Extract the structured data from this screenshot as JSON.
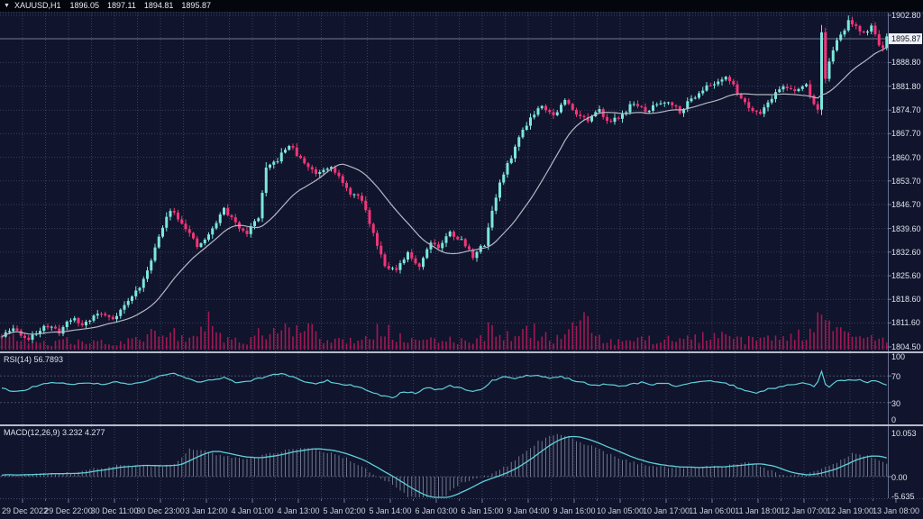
{
  "title_bar": {
    "symbol_timeframe": "XAUUSD,H1",
    "open": "1896.05",
    "high": "1897.11",
    "low": "1894.81",
    "close": "1895.87",
    "dropdown_icon": "symbol-dropdown"
  },
  "main_chart": {
    "current_price": "1895.87"
  },
  "rsi_panel": {
    "label": "RSI(14) 56.7893"
  },
  "macd_panel": {
    "label": "MACD(12,26,9) 3.232 4.277"
  },
  "colors": {
    "background": "#10142c",
    "title_bg": "#04060e",
    "grid": "#7d87aa",
    "bull": "#7ce6de",
    "bear": "#f23577",
    "ma_line": "#b5b8c4",
    "volume": "#a01955",
    "indicator_line": "#5fd0da",
    "histogram": "#99a1b5",
    "separator": "#b7bacb",
    "axis_text": "#dfe3ee",
    "price_tag_bg": "#eef0f6",
    "current_price_line": "#aab0c4"
  },
  "chart_data": {
    "type": "candlestick",
    "symbol": "XAUUSD",
    "timeframe": "H1",
    "ohlc_current": {
      "open": 1896.05,
      "high": 1897.11,
      "low": 1894.81,
      "close": 1895.87
    },
    "n_candles": 232,
    "candles_per_label": 12,
    "current_price": 1895.87,
    "price_axis_labels": [
      "1902.80",
      "1888.80",
      "1881.80",
      "1874.70",
      "1867.70",
      "1860.70",
      "1853.70",
      "1846.70",
      "1839.60",
      "1832.60",
      "1825.60",
      "1818.60",
      "1811.60",
      "1804.50"
    ],
    "x_labels": [
      "29 Dec 2022",
      "29 Dec 22:00",
      "30 Dec 11:00",
      "30 Dec 23:00",
      "3 Jan 12:00",
      "4 Jan 01:00",
      "4 Jan 13:00",
      "5 Jan 02:00",
      "5 Jan 14:00",
      "6 Jan 03:00",
      "6 Jan 15:00",
      "9 Jan 04:00",
      "9 Jan 16:00",
      "10 Jan 05:00",
      "10 Jan 17:00",
      "11 Jan 06:00",
      "11 Jan 18:00",
      "12 Jan 07:00",
      "12 Jan 19:00",
      "13 Jan 08:00"
    ],
    "ma_period": 21,
    "close_anchors": [
      [
        0,
        1807.5
      ],
      [
        3,
        1810
      ],
      [
        7,
        1806.5
      ],
      [
        11,
        1811
      ],
      [
        15,
        1809
      ],
      [
        18,
        1813
      ],
      [
        21,
        1811
      ],
      [
        25,
        1814.5
      ],
      [
        29,
        1813
      ],
      [
        33,
        1818
      ],
      [
        37,
        1824
      ],
      [
        40,
        1834
      ],
      [
        44,
        1845.5
      ],
      [
        46,
        1843
      ],
      [
        48,
        1840
      ],
      [
        51,
        1834
      ],
      [
        54,
        1837.5
      ],
      [
        58,
        1845.5
      ],
      [
        61,
        1841
      ],
      [
        64,
        1838.5
      ],
      [
        67,
        1843
      ],
      [
        69,
        1857
      ],
      [
        72,
        1860
      ],
      [
        75,
        1864.5
      ],
      [
        78,
        1860
      ],
      [
        82,
        1856
      ],
      [
        86,
        1858.5
      ],
      [
        90,
        1851
      ],
      [
        94,
        1848
      ],
      [
        97,
        1838
      ],
      [
        100,
        1829
      ],
      [
        103,
        1827
      ],
      [
        106,
        1832
      ],
      [
        109,
        1828.5
      ],
      [
        112,
        1836
      ],
      [
        114,
        1834
      ],
      [
        117,
        1838.5
      ],
      [
        120,
        1836
      ],
      [
        123,
        1831.5
      ],
      [
        126,
        1835
      ],
      [
        128,
        1845
      ],
      [
        130,
        1853
      ],
      [
        133,
        1861
      ],
      [
        136,
        1869
      ],
      [
        138,
        1872.5
      ],
      [
        141,
        1876.5
      ],
      [
        144,
        1873
      ],
      [
        147,
        1877.5
      ],
      [
        150,
        1874
      ],
      [
        153,
        1871.5
      ],
      [
        156,
        1874.5
      ],
      [
        159,
        1871
      ],
      [
        162,
        1873.5
      ],
      [
        165,
        1877
      ],
      [
        168,
        1874
      ],
      [
        171,
        1876.5
      ],
      [
        174,
        1877.5
      ],
      [
        177,
        1874.5
      ],
      [
        180,
        1878
      ],
      [
        183,
        1881
      ],
      [
        186,
        1882.5
      ],
      [
        189,
        1885
      ],
      [
        192,
        1880
      ],
      [
        195,
        1875.5
      ],
      [
        198,
        1874
      ],
      [
        201,
        1878.5
      ],
      [
        204,
        1882
      ],
      [
        207,
        1880
      ],
      [
        210,
        1882.5
      ],
      [
        212,
        1876
      ],
      [
        213,
        1875.5
      ],
      [
        214,
        1897.5
      ],
      [
        215,
        1884
      ],
      [
        217,
        1893
      ],
      [
        219,
        1896.5
      ],
      [
        221,
        1901
      ],
      [
        223,
        1899
      ],
      [
        225,
        1897.5
      ],
      [
        227,
        1899.5
      ],
      [
        229,
        1894.5
      ],
      [
        230,
        1893
      ],
      [
        231,
        1895.87
      ]
    ],
    "volume_anchors": [
      [
        0,
        12
      ],
      [
        4,
        16
      ],
      [
        8,
        9
      ],
      [
        12,
        8
      ],
      [
        16,
        12
      ],
      [
        20,
        9
      ],
      [
        24,
        10
      ],
      [
        28,
        8
      ],
      [
        32,
        11
      ],
      [
        36,
        14
      ],
      [
        40,
        20
      ],
      [
        44,
        26
      ],
      [
        48,
        16
      ],
      [
        51,
        12
      ],
      [
        54,
        38
      ],
      [
        57,
        16
      ],
      [
        60,
        12
      ],
      [
        64,
        11
      ],
      [
        68,
        22
      ],
      [
        72,
        20
      ],
      [
        76,
        30
      ],
      [
        80,
        34
      ],
      [
        84,
        16
      ],
      [
        88,
        12
      ],
      [
        92,
        14
      ],
      [
        96,
        20
      ],
      [
        100,
        27
      ],
      [
        103,
        16
      ],
      [
        106,
        12
      ],
      [
        110,
        10
      ],
      [
        114,
        12
      ],
      [
        118,
        13
      ],
      [
        122,
        12
      ],
      [
        126,
        18
      ],
      [
        128,
        34
      ],
      [
        131,
        18
      ],
      [
        134,
        16
      ],
      [
        138,
        26
      ],
      [
        142,
        16
      ],
      [
        146,
        14
      ],
      [
        150,
        36
      ],
      [
        152,
        38
      ],
      [
        155,
        14
      ],
      [
        158,
        12
      ],
      [
        162,
        10
      ],
      [
        166,
        12
      ],
      [
        170,
        13
      ],
      [
        174,
        15
      ],
      [
        178,
        12
      ],
      [
        182,
        16
      ],
      [
        186,
        18
      ],
      [
        190,
        14
      ],
      [
        194,
        12
      ],
      [
        198,
        13
      ],
      [
        202,
        15
      ],
      [
        206,
        16
      ],
      [
        210,
        20
      ],
      [
        213,
        42
      ],
      [
        215,
        30
      ],
      [
        218,
        22
      ],
      [
        222,
        18
      ],
      [
        226,
        14
      ],
      [
        229,
        18
      ],
      [
        231,
        10
      ]
    ],
    "rsi": {
      "period": 14,
      "current": 56.7893,
      "levels": [
        70,
        30
      ],
      "axis_labels": [
        "100",
        "70",
        "30",
        "0"
      ],
      "anchors": [
        [
          0,
          52
        ],
        [
          3,
          46
        ],
        [
          6,
          49
        ],
        [
          10,
          57
        ],
        [
          14,
          60
        ],
        [
          18,
          57
        ],
        [
          22,
          60
        ],
        [
          26,
          57
        ],
        [
          30,
          61
        ],
        [
          34,
          57
        ],
        [
          38,
          63
        ],
        [
          42,
          72
        ],
        [
          45,
          74
        ],
        [
          48,
          67
        ],
        [
          51,
          60
        ],
        [
          55,
          64
        ],
        [
          58,
          68
        ],
        [
          61,
          60
        ],
        [
          64,
          62
        ],
        [
          67,
          66
        ],
        [
          70,
          71
        ],
        [
          73,
          73
        ],
        [
          76,
          69
        ],
        [
          79,
          62
        ],
        [
          82,
          59
        ],
        [
          85,
          63
        ],
        [
          88,
          58
        ],
        [
          91,
          56
        ],
        [
          94,
          52
        ],
        [
          97,
          44
        ],
        [
          100,
          39
        ],
        [
          102,
          37
        ],
        [
          105,
          47
        ],
        [
          108,
          44
        ],
        [
          111,
          52
        ],
        [
          114,
          49
        ],
        [
          117,
          55
        ],
        [
          120,
          51
        ],
        [
          123,
          46
        ],
        [
          126,
          52
        ],
        [
          128,
          63
        ],
        [
          131,
          68
        ],
        [
          134,
          66
        ],
        [
          137,
          70
        ],
        [
          140,
          71
        ],
        [
          143,
          67
        ],
        [
          146,
          69
        ],
        [
          149,
          64
        ],
        [
          152,
          60
        ],
        [
          155,
          56
        ],
        [
          158,
          58
        ],
        [
          161,
          54
        ],
        [
          164,
          57
        ],
        [
          167,
          60
        ],
        [
          170,
          57
        ],
        [
          173,
          59
        ],
        [
          176,
          55
        ],
        [
          179,
          58
        ],
        [
          182,
          62
        ],
        [
          185,
          63
        ],
        [
          188,
          60
        ],
        [
          191,
          55
        ],
        [
          194,
          48
        ],
        [
          197,
          44
        ],
        [
          200,
          50
        ],
        [
          203,
          53
        ],
        [
          206,
          57
        ],
        [
          209,
          60
        ],
        [
          212,
          55
        ],
        [
          213,
          60
        ],
        [
          214,
          78
        ],
        [
          215,
          58
        ],
        [
          216,
          53
        ],
        [
          218,
          62
        ],
        [
          221,
          65
        ],
        [
          224,
          64
        ],
        [
          226,
          61
        ],
        [
          228,
          62
        ],
        [
          230,
          58
        ],
        [
          231,
          56.8
        ]
      ]
    },
    "macd": {
      "params": "12,26,9",
      "current_main": 3.232,
      "current_signal": 4.277,
      "signal_period": 9,
      "axis_labels": [
        "10.053",
        "0.00",
        "-5.635"
      ],
      "anchors": [
        [
          0,
          0.3
        ],
        [
          6,
          0.4
        ],
        [
          12,
          0.6
        ],
        [
          18,
          0.9
        ],
        [
          24,
          1.8
        ],
        [
          30,
          2.5
        ],
        [
          36,
          2.55
        ],
        [
          42,
          2.4
        ],
        [
          45,
          3.0
        ],
        [
          49,
          6.2
        ],
        [
          52,
          6.0
        ],
        [
          56,
          5.0
        ],
        [
          60,
          4.4
        ],
        [
          64,
          4.2
        ],
        [
          68,
          4.8
        ],
        [
          73,
          5.8
        ],
        [
          78,
          6.5
        ],
        [
          82,
          6.2
        ],
        [
          86,
          5.4
        ],
        [
          90,
          4.2
        ],
        [
          94,
          2.2
        ],
        [
          98,
          0.2
        ],
        [
          102,
          -1.8
        ],
        [
          106,
          -4.6
        ],
        [
          110,
          -5.3
        ],
        [
          116,
          -4.2
        ],
        [
          120,
          -1.3
        ],
        [
          124,
          -0.4
        ],
        [
          127,
          0.4
        ],
        [
          132,
          2.5
        ],
        [
          136,
          5.2
        ],
        [
          140,
          8.0
        ],
        [
          144,
          9.7
        ],
        [
          147,
          9.5
        ],
        [
          152,
          7.6
        ],
        [
          158,
          5.4
        ],
        [
          164,
          3.4
        ],
        [
          170,
          2.4
        ],
        [
          176,
          2.05
        ],
        [
          182,
          2.1
        ],
        [
          188,
          2.5
        ],
        [
          193,
          3.2
        ],
        [
          197,
          2.9
        ],
        [
          202,
          0.8
        ],
        [
          206,
          0.15
        ],
        [
          210,
          0.5
        ],
        [
          214,
          1.6
        ],
        [
          218,
          3.4
        ],
        [
          222,
          5.2
        ],
        [
          226,
          4.7
        ],
        [
          229,
          3.9
        ],
        [
          231,
          3.232
        ]
      ]
    }
  }
}
